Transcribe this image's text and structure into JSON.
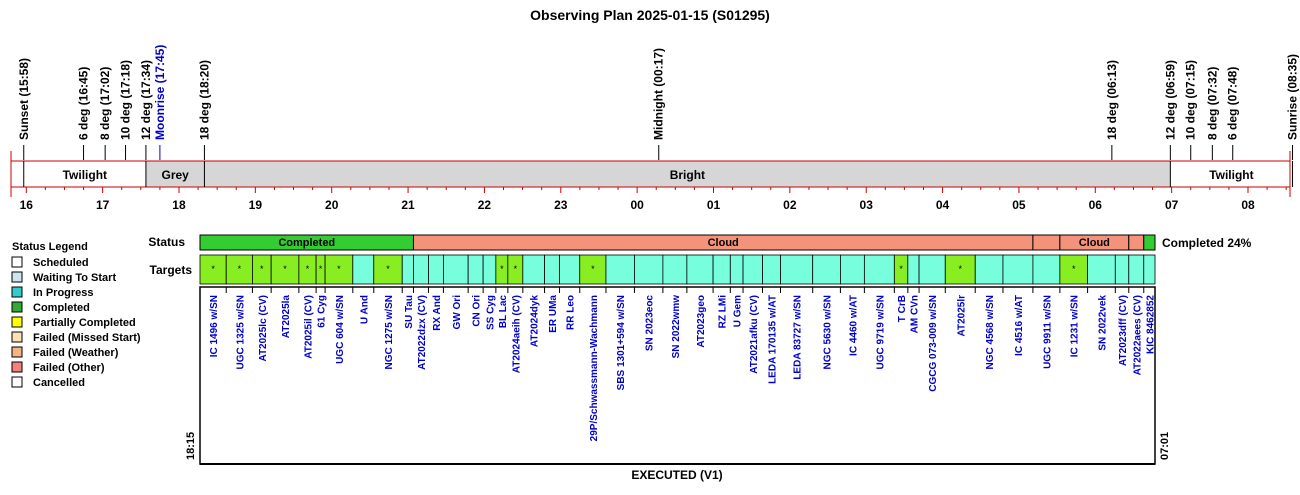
{
  "title": "Observing Plan 2025-01-15 (S01295)",
  "colors": {
    "twilight_line": "#cc0000",
    "grey_band": "#d6d6d6",
    "target_text": "#0000cc",
    "completed": "#33cc33",
    "cloud": "#f4937a",
    "target_completed": "#88ee22",
    "target_other": "#77ffdd",
    "moonrise": "#0000cc"
  },
  "chart_data": {
    "type": "table",
    "time_axis": {
      "start_hour": 15.8,
      "end_hour": 32.55,
      "ticks": [
        "16",
        "17",
        "18",
        "19",
        "20",
        "21",
        "22",
        "23",
        "00",
        "01",
        "02",
        "03",
        "04",
        "05",
        "06",
        "07",
        "08"
      ]
    },
    "events": [
      {
        "label": "Sunset (15:58)",
        "hour": 15.967,
        "color": "#000000"
      },
      {
        "label": "6 deg (16:45)",
        "hour": 16.75,
        "color": "#000000"
      },
      {
        "label": "8 deg (17:02)",
        "hour": 17.033,
        "color": "#000000"
      },
      {
        "label": "10 deg (17:18)",
        "hour": 17.3,
        "color": "#000000"
      },
      {
        "label": "12 deg (17:34)",
        "hour": 17.567,
        "color": "#000000"
      },
      {
        "label": "Moonrise (17:45)",
        "hour": 17.75,
        "color": "#0000cc"
      },
      {
        "label": "18 deg (18:20)",
        "hour": 18.333,
        "color": "#000000"
      },
      {
        "label": "Midnight (00:17)",
        "hour": 24.283,
        "color": "#000000"
      },
      {
        "label": "18 deg (06:13)",
        "hour": 30.217,
        "color": "#000000"
      },
      {
        "label": "12 deg (06:59)",
        "hour": 30.983,
        "color": "#000000"
      },
      {
        "label": "10 deg (07:15)",
        "hour": 31.25,
        "color": "#000000"
      },
      {
        "label": "8 deg (07:32)",
        "hour": 31.533,
        "color": "#000000"
      },
      {
        "label": "6 deg (07:48)",
        "hour": 31.8,
        "color": "#000000"
      },
      {
        "label": "Sunrise (08:35)",
        "hour": 32.583,
        "color": "#000000"
      }
    ],
    "bands": [
      {
        "label": "Twilight",
        "start": 15.967,
        "end": 17.567,
        "type": "twilight"
      },
      {
        "label": "Grey",
        "start": 17.567,
        "end": 18.333,
        "type": "grey"
      },
      {
        "label": "Bright",
        "start": 18.333,
        "end": 30.983,
        "type": "grey"
      },
      {
        "label": "Twilight",
        "start": 30.983,
        "end": 32.583,
        "type": "twilight"
      }
    ],
    "status_row_label": "Status",
    "targets_row_label": "Targets",
    "status_segments": [
      {
        "label": "Completed",
        "start": 18.25,
        "end": 21.1,
        "status": "completed"
      },
      {
        "label": "Cloud",
        "start": 21.1,
        "end": 29.37,
        "status": "cloud"
      },
      {
        "label": "",
        "start": 29.37,
        "end": 29.73,
        "status": "cloud"
      },
      {
        "label": "Cloud",
        "start": 29.73,
        "end": 30.65,
        "status": "cloud"
      },
      {
        "label": "",
        "start": 30.65,
        "end": 30.85,
        "status": "cloud"
      },
      {
        "label": "",
        "start": 30.85,
        "end": 31.0,
        "status": "completed"
      }
    ],
    "completion_text": "Completed 24%",
    "targets": [
      {
        "name": "IC 1496 w/SN",
        "start": 18.25,
        "end": 18.6,
        "status": "completed",
        "mark": "*"
      },
      {
        "name": "UGC 1325 w/SN",
        "start": 18.6,
        "end": 18.95,
        "status": "completed",
        "mark": "*"
      },
      {
        "name": "AT2025lc (CV)",
        "start": 18.95,
        "end": 19.2,
        "status": "completed",
        "mark": "*"
      },
      {
        "name": "AT2025la",
        "start": 19.2,
        "end": 19.57,
        "status": "completed",
        "mark": "*"
      },
      {
        "name": "AT2025il (CV)",
        "start": 19.57,
        "end": 19.8,
        "status": "completed",
        "mark": "*"
      },
      {
        "name": "61 Cyg",
        "start": 19.8,
        "end": 19.92,
        "status": "completed",
        "mark": "*"
      },
      {
        "name": "UGC 604 w/SN",
        "start": 19.92,
        "end": 20.29,
        "status": "completed",
        "mark": "*"
      },
      {
        "name": "U And",
        "start": 20.29,
        "end": 20.57,
        "status": "other",
        "mark": ""
      },
      {
        "name": "NGC 1275 w/SN",
        "start": 20.57,
        "end": 20.95,
        "status": "completed",
        "mark": "*"
      },
      {
        "name": "SU Tau",
        "start": 20.95,
        "end": 21.1,
        "status": "other",
        "mark": ""
      },
      {
        "name": "AT2022dzx (CV)",
        "start": 21.1,
        "end": 21.3,
        "status": "other",
        "mark": ""
      },
      {
        "name": "RX And",
        "start": 21.3,
        "end": 21.5,
        "status": "other",
        "mark": ""
      },
      {
        "name": "GW Ori",
        "start": 21.5,
        "end": 21.83,
        "status": "other",
        "mark": ""
      },
      {
        "name": "CN Ori",
        "start": 21.83,
        "end": 22.03,
        "status": "other",
        "mark": ""
      },
      {
        "name": "SS Cyg",
        "start": 22.03,
        "end": 22.2,
        "status": "other",
        "mark": ""
      },
      {
        "name": "BL Lac",
        "start": 22.2,
        "end": 22.36,
        "status": "completed",
        "mark": "*"
      },
      {
        "name": "AT2024aeih (CV)",
        "start": 22.36,
        "end": 22.56,
        "status": "completed",
        "mark": "*"
      },
      {
        "name": "AT2024dyk",
        "start": 22.56,
        "end": 22.85,
        "status": "other",
        "mark": ""
      },
      {
        "name": "ER UMa",
        "start": 22.85,
        "end": 23.05,
        "status": "other",
        "mark": ""
      },
      {
        "name": "RR Leo",
        "start": 23.05,
        "end": 23.32,
        "status": "other",
        "mark": ""
      },
      {
        "name": "29P/Schwassmann-Wachmann",
        "start": 23.32,
        "end": 23.67,
        "status": "completed",
        "mark": "*"
      },
      {
        "name": "SBS 1301+594 w/SN",
        "start": 23.67,
        "end": 24.05,
        "status": "other",
        "mark": ""
      },
      {
        "name": "SN 2023eoc",
        "start": 24.05,
        "end": 24.43,
        "status": "other",
        "mark": ""
      },
      {
        "name": "SN 2022wmw",
        "start": 24.43,
        "end": 24.75,
        "status": "other",
        "mark": ""
      },
      {
        "name": "AT2023geo",
        "start": 24.75,
        "end": 25.1,
        "status": "other",
        "mark": ""
      },
      {
        "name": "RZ LMi",
        "start": 25.1,
        "end": 25.33,
        "status": "other",
        "mark": ""
      },
      {
        "name": "U Gem",
        "start": 25.33,
        "end": 25.5,
        "status": "other",
        "mark": ""
      },
      {
        "name": "AT2021afku (CV)",
        "start": 25.5,
        "end": 25.76,
        "status": "other",
        "mark": ""
      },
      {
        "name": "LEDA 170135 w/AT",
        "start": 25.76,
        "end": 26.0,
        "status": "other",
        "mark": ""
      },
      {
        "name": "LEDA 83727 w/SN",
        "start": 26.0,
        "end": 26.43,
        "status": "other",
        "mark": ""
      },
      {
        "name": "NGC 5630 w/SN",
        "start": 26.43,
        "end": 26.8,
        "status": "other",
        "mark": ""
      },
      {
        "name": "IC 4460 w/AT",
        "start": 26.8,
        "end": 27.12,
        "status": "other",
        "mark": ""
      },
      {
        "name": "UGC 9719 w/SN",
        "start": 27.12,
        "end": 27.52,
        "status": "other",
        "mark": ""
      },
      {
        "name": "T CrB",
        "start": 27.52,
        "end": 27.7,
        "status": "completed",
        "mark": "*"
      },
      {
        "name": "AM CVn",
        "start": 27.7,
        "end": 27.85,
        "status": "other",
        "mark": ""
      },
      {
        "name": "CGCG 073-009 w/SN",
        "start": 27.85,
        "end": 28.2,
        "status": "other",
        "mark": ""
      },
      {
        "name": "AT2025lr",
        "start": 28.2,
        "end": 28.6,
        "status": "completed",
        "mark": "*"
      },
      {
        "name": "NGC 4568 w/SN",
        "start": 28.6,
        "end": 28.97,
        "status": "other",
        "mark": ""
      },
      {
        "name": "IC 4516 w/AT",
        "start": 28.97,
        "end": 29.37,
        "status": "other",
        "mark": ""
      },
      {
        "name": "UGC 9911 w/SN",
        "start": 29.37,
        "end": 29.73,
        "status": "other",
        "mark": ""
      },
      {
        "name": "IC 1231 w/SN",
        "start": 29.73,
        "end": 30.1,
        "status": "completed",
        "mark": "*"
      },
      {
        "name": "SN 2022vek",
        "start": 30.1,
        "end": 30.47,
        "status": "other",
        "mark": ""
      },
      {
        "name": "AT2023dff (CV)",
        "start": 30.47,
        "end": 30.65,
        "status": "other",
        "mark": ""
      },
      {
        "name": "AT2022aees (CV)",
        "start": 30.65,
        "end": 30.85,
        "status": "other",
        "mark": ""
      },
      {
        "name": "KIC 8462852",
        "start": 30.85,
        "end": 31.0,
        "status": "other",
        "mark": ""
      }
    ],
    "executed_start": "18:15",
    "executed_end": "07:01",
    "executed_label": "EXECUTED (V1)",
    "legend": {
      "title": "Status Legend",
      "items": [
        {
          "label": "Scheduled",
          "color": "#ffffff"
        },
        {
          "label": "Waiting To Start",
          "color": "#cce6f0"
        },
        {
          "label": "In Progress",
          "color": "#33cccc"
        },
        {
          "label": "Completed",
          "color": "#33aa33"
        },
        {
          "label": "Partially Completed",
          "color": "#ffff00"
        },
        {
          "label": "Failed (Missed Start)",
          "color": "#ffe0b0"
        },
        {
          "label": "Failed (Weather)",
          "color": "#f4b483"
        },
        {
          "label": "Failed (Other)",
          "color": "#f48080"
        },
        {
          "label": "Cancelled",
          "color": "#ffffff"
        }
      ]
    }
  }
}
